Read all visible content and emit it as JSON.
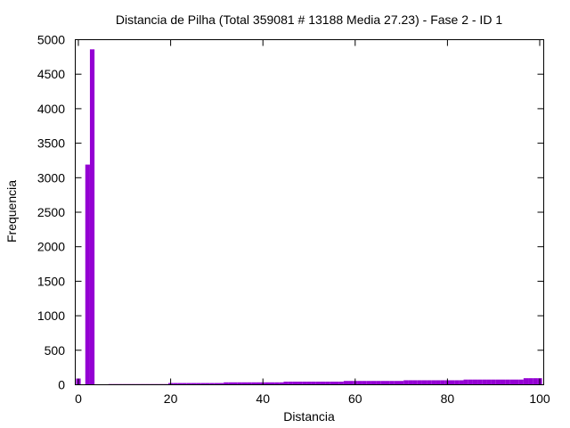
{
  "chart_data": {
    "type": "bar",
    "title": "Distancia de Pilha (Total 359081 # 13188 Media 27.23) - Fase  2 - ID 1",
    "xlabel": "Distancia",
    "ylabel": "Frequencia",
    "xlim": [
      0,
      100
    ],
    "ylim": [
      0,
      5000
    ],
    "xticks": [
      "0",
      "20",
      "40",
      "60",
      "80",
      "100"
    ],
    "yticks": [
      "0",
      "500",
      "1000",
      "1500",
      "2000",
      "2500",
      "3000",
      "3500",
      "4000",
      "4500",
      "5000"
    ],
    "grid": false,
    "legend": "none",
    "bar_color": "#9400d3",
    "series": [
      {
        "x": [
          0,
          1,
          2,
          3,
          4,
          5,
          6,
          7,
          8,
          9,
          10,
          11,
          12,
          13,
          14,
          15,
          16,
          17,
          18,
          19,
          20,
          21,
          22,
          23,
          24,
          25,
          26,
          27,
          28,
          29,
          30,
          31,
          32,
          33,
          34,
          35,
          36,
          37,
          38,
          39,
          40,
          41,
          42,
          43,
          44,
          45,
          46,
          47,
          48,
          49,
          50,
          51,
          52,
          53,
          54,
          55,
          56,
          57,
          58,
          59,
          60,
          61,
          62,
          63,
          64,
          65,
          66,
          67,
          68,
          69,
          70,
          71,
          72,
          73,
          74,
          75,
          76,
          77,
          78,
          79,
          80,
          81,
          82,
          83,
          84,
          85,
          86,
          87,
          88,
          89,
          90,
          91,
          92,
          93,
          94,
          95,
          96,
          97,
          98,
          99,
          100
        ],
        "values": [
          90,
          0,
          3190,
          4860,
          0,
          0,
          0,
          10,
          10,
          10,
          10,
          10,
          10,
          10,
          10,
          10,
          10,
          10,
          10,
          10,
          25,
          25,
          25,
          25,
          25,
          25,
          25,
          25,
          25,
          25,
          25,
          25,
          35,
          35,
          35,
          35,
          35,
          35,
          35,
          35,
          35,
          35,
          35,
          35,
          35,
          45,
          45,
          45,
          45,
          45,
          45,
          45,
          45,
          45,
          45,
          45,
          45,
          45,
          55,
          55,
          55,
          55,
          55,
          55,
          55,
          55,
          55,
          55,
          55,
          55,
          55,
          65,
          65,
          65,
          65,
          65,
          65,
          65,
          65,
          65,
          65,
          65,
          65,
          65,
          75,
          75,
          75,
          75,
          75,
          75,
          75,
          75,
          75,
          75,
          75,
          75,
          75,
          95,
          95,
          95,
          95
        ]
      }
    ]
  }
}
